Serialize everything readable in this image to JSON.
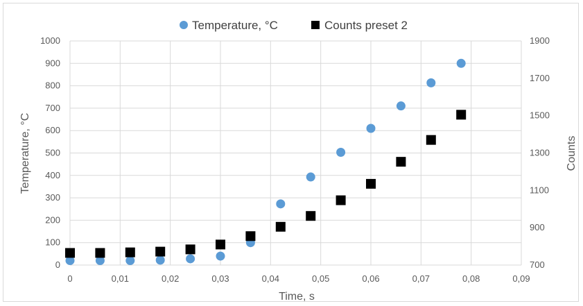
{
  "chart_data": {
    "type": "scatter",
    "xlabel": "Time, s",
    "ylabel": "Temperature, °C",
    "y2label": "Counts",
    "xlim": [
      0,
      0.09
    ],
    "ylim": [
      0,
      1000
    ],
    "y2lim": [
      700,
      1900
    ],
    "grid": true,
    "legend_position": "top",
    "x_ticks": [
      "0",
      "0,01",
      "0,02",
      "0,03",
      "0,04",
      "0,05",
      "0,06",
      "0,07",
      "0,08",
      "0,09"
    ],
    "y_ticks": [
      "0",
      "100",
      "200",
      "300",
      "400",
      "500",
      "600",
      "700",
      "800",
      "900",
      "1000"
    ],
    "y2_ticks": [
      "700",
      "900",
      "1100",
      "1300",
      "1500",
      "1700",
      "1900"
    ],
    "series": [
      {
        "name": "Temperature, °C",
        "axis": "left",
        "marker": "circle",
        "color": "#5b9bd5",
        "x": [
          0,
          0.006,
          0.012,
          0.018,
          0.024,
          0.03,
          0.036,
          0.042,
          0.048,
          0.054,
          0.06,
          0.066,
          0.072,
          0.078
        ],
        "y": [
          20,
          20,
          20,
          22,
          28,
          40,
          100,
          273,
          393,
          503,
          610,
          710,
          813,
          900
        ]
      },
      {
        "name": "Counts preset 2",
        "axis": "right",
        "marker": "square",
        "color": "#000000",
        "x": [
          0,
          0.006,
          0.012,
          0.018,
          0.024,
          0.03,
          0.036,
          0.042,
          0.048,
          0.054,
          0.06,
          0.066,
          0.072,
          0.078
        ],
        "y": [
          765,
          765,
          768,
          772,
          784,
          810,
          855,
          905,
          963,
          1047,
          1135,
          1253,
          1370,
          1505
        ]
      }
    ]
  }
}
